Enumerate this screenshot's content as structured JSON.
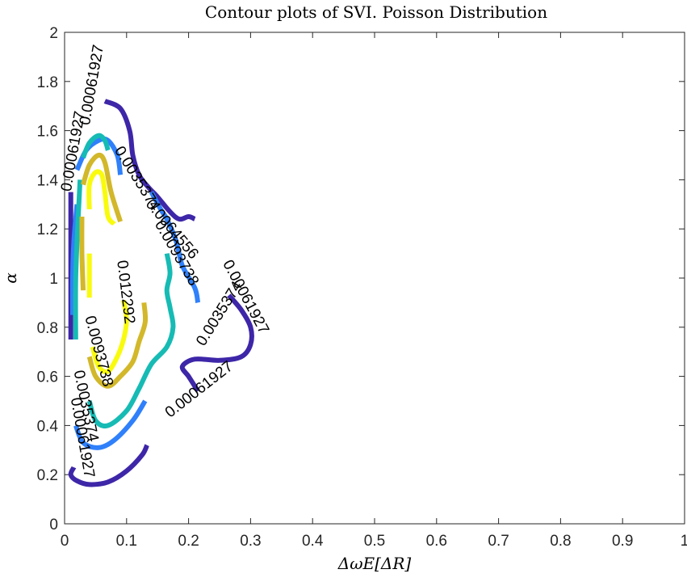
{
  "chart_data": {
    "type": "contour",
    "title": "Contour plots of SVI. Poisson Distribution",
    "xlabel": "ΔωE[ΔR]",
    "ylabel": "α",
    "xlim": [
      0,
      1
    ],
    "ylim": [
      0,
      2
    ],
    "xticks": [
      "0",
      "0.1",
      "0.2",
      "0.3",
      "0.4",
      "0.5",
      "0.6",
      "0.7",
      "0.8",
      "0.9",
      "1"
    ],
    "yticks": [
      "0",
      "0.2",
      "0.4",
      "0.6",
      "0.8",
      "1",
      "1.2",
      "1.4",
      "1.6",
      "1.8",
      "2"
    ],
    "grid": false,
    "levels": [
      {
        "level": "0.00061927",
        "color": "#3e26a8",
        "segments": [
          [
            [
              0.065,
              1.72
            ],
            [
              0.09,
              1.69
            ],
            [
              0.105,
              1.6
            ],
            [
              0.11,
              1.5
            ],
            [
              0.12,
              1.42
            ],
            [
              0.135,
              1.37
            ],
            [
              0.15,
              1.33
            ],
            [
              0.17,
              1.27
            ],
            [
              0.185,
              1.24
            ],
            [
              0.2,
              1.25
            ],
            [
              0.21,
              1.24
            ]
          ],
          [
            [
              0.265,
              0.93
            ],
            [
              0.285,
              0.87
            ],
            [
              0.3,
              0.8
            ],
            [
              0.3,
              0.73
            ],
            [
              0.285,
              0.68
            ],
            [
              0.25,
              0.665
            ],
            [
              0.21,
              0.67
            ],
            [
              0.19,
              0.64
            ],
            [
              0.2,
              0.6
            ],
            [
              0.21,
              0.56
            ],
            [
              0.215,
              0.54
            ]
          ],
          [
            [
              0.133,
              0.32
            ],
            [
              0.125,
              0.28
            ],
            [
              0.1,
              0.215
            ],
            [
              0.07,
              0.17
            ],
            [
              0.04,
              0.16
            ],
            [
              0.02,
              0.175
            ],
            [
              0.01,
              0.2
            ],
            [
              0.015,
              0.23
            ]
          ],
          [
            [
              0.01,
              1.35
            ],
            [
              0.01,
              1.2
            ],
            [
              0.01,
              1.0
            ],
            [
              0.01,
              0.75
            ]
          ]
        ],
        "labels": [
          {
            "text": "0.00061927",
            "x": 0.04,
            "y": 1.62,
            "angle": -80
          },
          {
            "text": "0.00061927",
            "x": 0.01,
            "y": 1.35,
            "angle": -80
          },
          {
            "text": "0.00061927",
            "x": 0.255,
            "y": 1.06,
            "angle": 62
          },
          {
            "text": "0.00061927",
            "x": 0.17,
            "y": 0.43,
            "angle": -38
          },
          {
            "text": "0.00061927",
            "x": 0.01,
            "y": 0.51,
            "angle": 80
          }
        ]
      },
      {
        "level": "0.0035374",
        "color": "#2f80fa",
        "segments": [
          [
            [
              0.02,
              1.44
            ],
            [
              0.035,
              1.52
            ],
            [
              0.055,
              1.56
            ],
            [
              0.07,
              1.56
            ],
            [
              0.085,
              1.5
            ],
            [
              0.09,
              1.42
            ]
          ],
          [
            [
              0.14,
              1.35
            ],
            [
              0.155,
              1.28
            ],
            [
              0.165,
              1.24
            ],
            [
              0.18,
              1.15
            ],
            [
              0.19,
              1.05
            ],
            [
              0.21,
              0.96
            ],
            [
              0.215,
              0.9
            ]
          ],
          [
            [
              0.013,
              0.85
            ],
            [
              0.013,
              1.0
            ],
            [
              0.015,
              1.15
            ],
            [
              0.02,
              1.3
            ]
          ],
          [
            [
              0.13,
              0.5
            ],
            [
              0.11,
              0.42
            ],
            [
              0.08,
              0.34
            ],
            [
              0.055,
              0.31
            ],
            [
              0.03,
              0.33
            ],
            [
              0.018,
              0.4
            ]
          ]
        ],
        "labels": [
          {
            "text": "0.0035374",
            "x": 0.08,
            "y": 1.52,
            "angle": 58
          },
          {
            "text": "0.0035374",
            "x": 0.225,
            "y": 0.72,
            "angle": -58
          },
          {
            "text": "0.0035374",
            "x": 0.015,
            "y": 0.62,
            "angle": 78
          }
        ]
      },
      {
        "level": "0.0064556",
        "color": "#16bbb4",
        "segments": [
          [
            [
              0.03,
              1.49
            ],
            [
              0.04,
              1.55
            ],
            [
              0.055,
              1.58
            ],
            [
              0.065,
              1.56
            ],
            [
              0.07,
              1.52
            ]
          ],
          [
            [
              0.165,
              1.1
            ],
            [
              0.17,
              1.02
            ],
            [
              0.165,
              0.95
            ],
            [
              0.17,
              0.88
            ],
            [
              0.175,
              0.8
            ],
            [
              0.165,
              0.72
            ],
            [
              0.14,
              0.65
            ],
            [
              0.12,
              0.55
            ],
            [
              0.1,
              0.46
            ],
            [
              0.07,
              0.4
            ],
            [
              0.05,
              0.42
            ],
            [
              0.04,
              0.5
            ]
          ],
          [
            [
              0.018,
              0.75
            ],
            [
              0.018,
              1.0
            ],
            [
              0.022,
              1.25
            ],
            [
              0.025,
              1.4
            ]
          ]
        ],
        "labels": [
          {
            "text": "0.0064556",
            "x": 0.13,
            "y": 1.3,
            "angle": 50
          }
        ]
      },
      {
        "level": "0.0093738",
        "color": "#d2b82a",
        "segments": [
          [
            [
              0.03,
              1.38
            ],
            [
              0.04,
              1.46
            ],
            [
              0.055,
              1.5
            ],
            [
              0.065,
              1.47
            ],
            [
              0.075,
              1.35
            ],
            [
              0.09,
              1.23
            ]
          ],
          [
            [
              0.128,
              0.9
            ],
            [
              0.13,
              0.82
            ],
            [
              0.12,
              0.74
            ],
            [
              0.11,
              0.66
            ],
            [
              0.09,
              0.6
            ],
            [
              0.07,
              0.56
            ],
            [
              0.05,
              0.6
            ],
            [
              0.04,
              0.68
            ]
          ],
          [
            [
              0.03,
              0.95
            ],
            [
              0.028,
              1.1
            ],
            [
              0.028,
              1.25
            ]
          ]
        ],
        "labels": [
          {
            "text": "0.0093738",
            "x": 0.145,
            "y": 1.22,
            "angle": 60
          },
          {
            "text": "0.0093738",
            "x": 0.033,
            "y": 0.84,
            "angle": 75
          }
        ]
      },
      {
        "level": "0.012292",
        "color": "#f9fb0e",
        "segments": [
          [
            [
              0.04,
              1.28
            ],
            [
              0.04,
              1.38
            ],
            [
              0.05,
              1.43
            ],
            [
              0.06,
              1.42
            ],
            [
              0.065,
              1.35
            ],
            [
              0.07,
              1.25
            ],
            [
              0.08,
              1.22
            ]
          ],
          [
            [
              0.095,
              0.91
            ],
            [
              0.1,
              0.83
            ],
            [
              0.095,
              0.75
            ],
            [
              0.085,
              0.68
            ],
            [
              0.07,
              0.62
            ],
            [
              0.055,
              0.64
            ],
            [
              0.045,
              0.72
            ]
          ],
          [
            [
              0.04,
              0.92
            ],
            [
              0.04,
              1.1
            ]
          ]
        ],
        "labels": [
          {
            "text": "0.012292",
            "x": 0.085,
            "y": 1.07,
            "angle": 83
          }
        ]
      }
    ]
  }
}
